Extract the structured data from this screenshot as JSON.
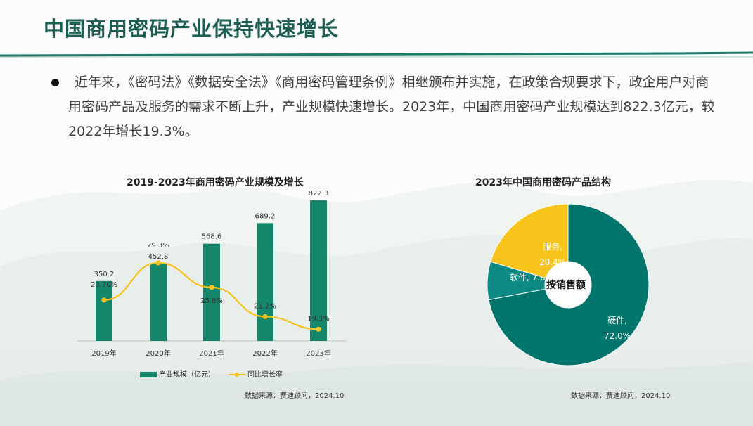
{
  "page": {
    "title": "中国商用密码产业保持快速增长",
    "paragraph": "近年来，《密码法》《数据安全法》《商用密码管理条例》相继颁布并实施，在政策合规要求下，政企用户对商用密码产品及服务的需求不断上升，产业规模快速增长。2023年，中国商用密码产业规模达到822.3亿元，较2022年增长19.3%。"
  },
  "colors": {
    "title": "#1d5f52",
    "bar": "#14876b",
    "line": "#f6c21c",
    "donut_hardware": "#00756b",
    "donut_software": "#0c8a83",
    "donut_service": "#f7c41c"
  },
  "chart_data": [
    {
      "type": "bar",
      "title": "2019-2023年商用密码产业规模及增长",
      "categories": [
        "2019年",
        "2020年",
        "2021年",
        "2022年",
        "2023年"
      ],
      "series": [
        {
          "name": "产业规模（亿元）",
          "type": "bar",
          "values": [
            350.2,
            452.8,
            568.6,
            689.2,
            822.3
          ],
          "labels": [
            "350.2",
            "452.8",
            "568.6",
            "689.2",
            "822.3"
          ]
        },
        {
          "name": "同比增长率",
          "type": "line",
          "values": [
            23.7,
            29.3,
            25.6,
            21.2,
            19.3
          ],
          "labels": [
            "23.70%",
            "29.3%",
            "25.6%",
            "21.2%",
            "19.3%"
          ]
        }
      ],
      "legend_position": "bottom",
      "source": "数据来源：赛迪顾问，2024.10"
    },
    {
      "type": "pie",
      "title": "2023年中国商用密码产品结构",
      "center_label": "按销售额",
      "slices": [
        {
          "label": "硬件,",
          "value": 72.0,
          "value_label": "72.0%"
        },
        {
          "label": "软件,",
          "value": 7.6,
          "value_label": "7.6%"
        },
        {
          "label": "服务,",
          "value": 20.4,
          "value_label": "20.4%"
        }
      ],
      "source": "数据来源：赛迪顾问，2024.10"
    }
  ]
}
